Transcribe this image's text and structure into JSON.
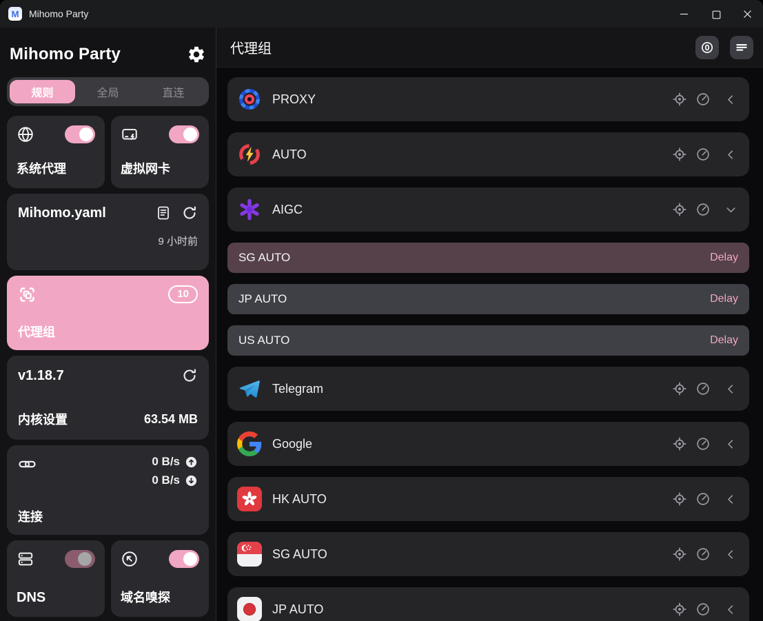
{
  "window": {
    "title": "Mihomo Party",
    "app_icon_letter": "M"
  },
  "sidebar": {
    "title": "Mihomo Party",
    "mode_tabs": [
      {
        "label": "规则",
        "active": true
      },
      {
        "label": "全局",
        "active": false
      },
      {
        "label": "直连",
        "active": false
      }
    ],
    "system_proxy": {
      "label": "系统代理",
      "enabled": true
    },
    "tun": {
      "label": "虚拟网卡",
      "enabled": true
    },
    "profile": {
      "name": "Mihomo.yaml",
      "updated": "9 小时前"
    },
    "proxy_groups_card": {
      "label": "代理组",
      "badge": "10",
      "active": true
    },
    "core": {
      "version": "v1.18.7",
      "label": "内核设置",
      "memory": "63.54 MB"
    },
    "connections": {
      "label": "连接",
      "upload": "0 B/s",
      "download": "0 B/s"
    },
    "dns": {
      "label": "DNS",
      "enabled": false
    },
    "sniff": {
      "label": "域名嗅探",
      "enabled": true
    }
  },
  "main": {
    "title": "代理组",
    "groups": [
      {
        "name": "PROXY",
        "icon": "proxy",
        "expanded": false
      },
      {
        "name": "AUTO",
        "icon": "auto",
        "expanded": false
      },
      {
        "name": "AIGC",
        "icon": "openai",
        "expanded": true,
        "children": [
          {
            "name": "SG AUTO",
            "delay_label": "Delay",
            "selected": true
          },
          {
            "name": "JP AUTO",
            "delay_label": "Delay",
            "selected": false
          },
          {
            "name": "US AUTO",
            "delay_label": "Delay",
            "selected": false
          }
        ]
      },
      {
        "name": "Telegram",
        "icon": "telegram",
        "expanded": false
      },
      {
        "name": "Google",
        "icon": "google",
        "expanded": false
      },
      {
        "name": "HK AUTO",
        "icon": "hk-flag",
        "expanded": false
      },
      {
        "name": "SG AUTO",
        "icon": "sg-flag",
        "expanded": false
      },
      {
        "name": "JP AUTO",
        "icon": "jp-flag",
        "expanded": false
      }
    ]
  },
  "icons": {
    "titlebar": [
      "minimize-icon",
      "maximize-icon",
      "close-icon"
    ],
    "sidebar": [
      "gear-icon",
      "globe-icon",
      "tun-icon",
      "document-icon",
      "refresh-icon",
      "proxy-groups-icon",
      "link-icon",
      "upload-circle-icon",
      "download-circle-icon",
      "server-icon",
      "sniffer-icon"
    ],
    "main": [
      "zero-circle-icon",
      "list-lines-icon",
      "locate-icon",
      "speedtest-icon",
      "chevron-left-icon",
      "chevron-down-icon"
    ]
  },
  "colors": {
    "accent_pink": "#f1a7c4",
    "delay_text": "#f2a6c3",
    "selected_sub_row": "#56414b",
    "muted_toggle": "#8a5c6e",
    "card_bg": "#2a2a2e",
    "row_bg": "#252528",
    "sub_row_bg": "#3e4045"
  }
}
